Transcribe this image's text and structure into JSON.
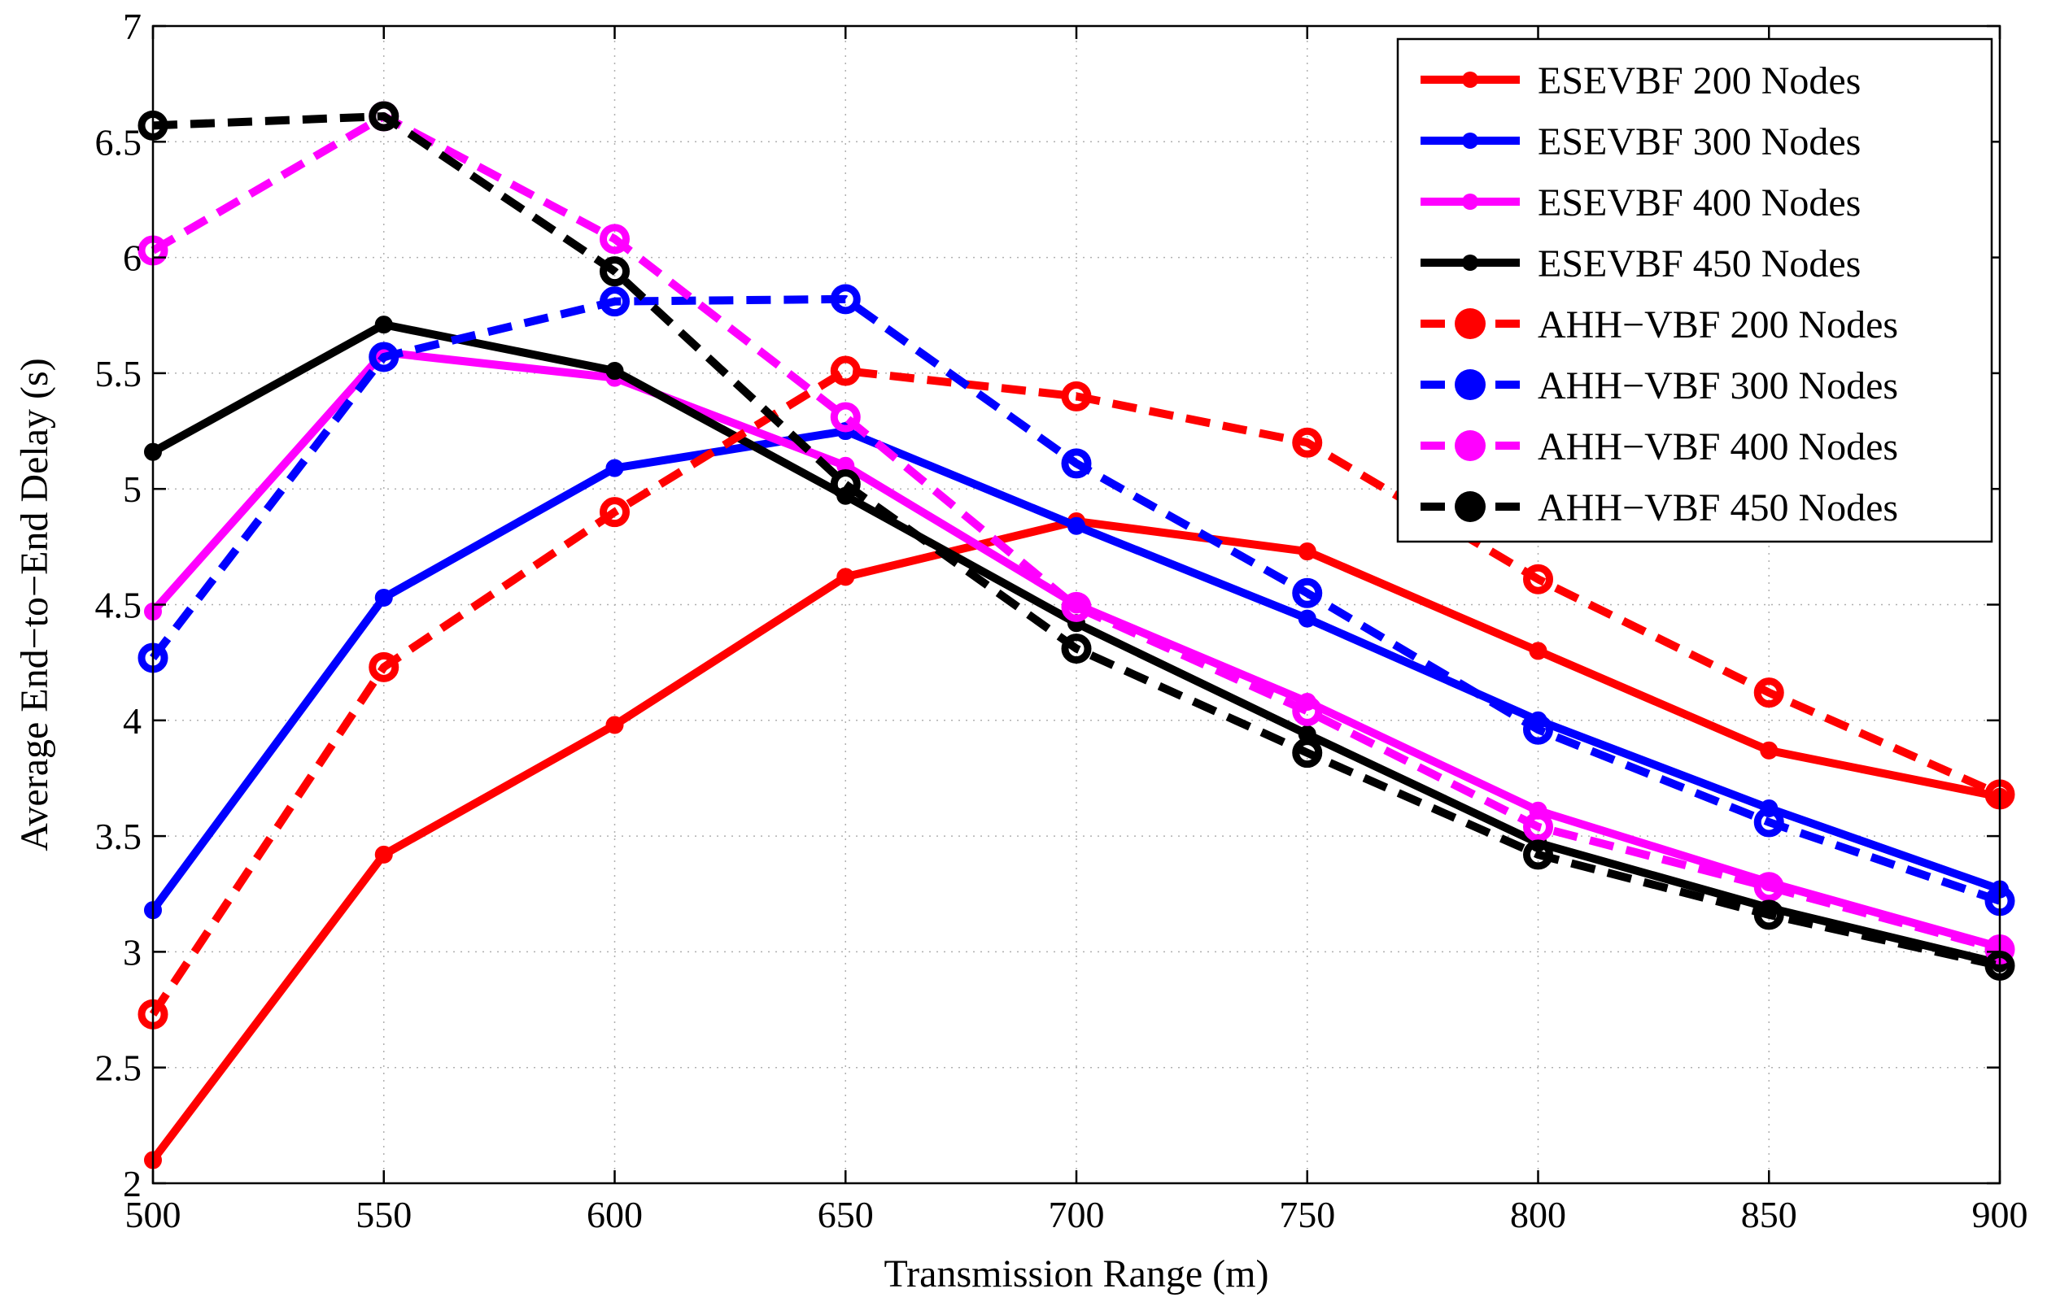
{
  "chart_data": {
    "type": "line",
    "title": "",
    "xlabel": "Transmission Range (m)",
    "ylabel": "Average End−to−End Delay (s)",
    "xlim": [
      500,
      900
    ],
    "ylim": [
      2,
      7
    ],
    "grid": true,
    "legend_position": "top-right",
    "x": [
      500,
      550,
      600,
      650,
      700,
      750,
      800,
      850,
      900
    ],
    "x_ticks": [
      "500",
      "550",
      "600",
      "650",
      "700",
      "750",
      "800",
      "850",
      "900"
    ],
    "y_ticks": [
      {
        "value": 2,
        "label": "2"
      },
      {
        "value": 2.5,
        "label": "2.5"
      },
      {
        "value": 3,
        "label": "3"
      },
      {
        "value": 3.5,
        "label": "3.5"
      },
      {
        "value": 4,
        "label": "4"
      },
      {
        "value": 4.5,
        "label": "4.5"
      },
      {
        "value": 5,
        "label": "5"
      },
      {
        "value": 5.5,
        "label": "5.5"
      },
      {
        "value": 6,
        "label": "6"
      },
      {
        "value": 6.5,
        "label": "6.5"
      },
      {
        "value": 7,
        "label": "7"
      }
    ],
    "series": [
      {
        "name": "ESEVBF 200 Nodes",
        "key": "esevbf-200",
        "color": "#ff0000",
        "style": "solid",
        "marker": "dot",
        "values": [
          2.1,
          3.42,
          3.98,
          4.62,
          4.86,
          4.73,
          4.3,
          3.87,
          3.67
        ]
      },
      {
        "name": "ESEVBF 300 Nodes",
        "key": "esevbf-300",
        "color": "#0000ff",
        "style": "solid",
        "marker": "dot",
        "values": [
          3.18,
          4.53,
          5.09,
          5.25,
          4.84,
          4.44,
          4.0,
          3.62,
          3.27
        ]
      },
      {
        "name": "ESEVBF 400 Nodes",
        "key": "esevbf-400",
        "color": "#ff00ff",
        "style": "solid",
        "marker": "dot",
        "values": [
          4.47,
          5.59,
          5.48,
          5.1,
          4.5,
          4.08,
          3.61,
          3.3,
          3.02
        ]
      },
      {
        "name": "ESEVBF 450 Nodes",
        "key": "esevbf-450",
        "color": "#000000",
        "style": "solid",
        "marker": "dot",
        "values": [
          5.16,
          5.71,
          5.51,
          4.97,
          4.42,
          3.94,
          3.47,
          3.19,
          2.95
        ]
      },
      {
        "name": "AHH−VBF 200 Nodes",
        "key": "ahh-vbf-200",
        "color": "#ff0000",
        "style": "dashed",
        "marker": "circle",
        "values": [
          2.73,
          4.23,
          4.9,
          5.51,
          5.4,
          5.2,
          4.61,
          4.12,
          3.68
        ]
      },
      {
        "name": "AHH−VBF 300 Nodes",
        "key": "ahh-vbf-300",
        "color": "#0000ff",
        "style": "dashed",
        "marker": "circle",
        "values": [
          4.27,
          5.57,
          5.81,
          5.82,
          5.11,
          4.55,
          3.96,
          3.56,
          3.22
        ]
      },
      {
        "name": "AHH−VBF 400 Nodes",
        "key": "ahh-vbf-400",
        "color": "#ff00ff",
        "style": "dashed",
        "marker": "circle",
        "values": [
          6.03,
          6.61,
          6.08,
          5.31,
          4.49,
          4.04,
          3.54,
          3.28,
          3.01
        ]
      },
      {
        "name": "AHH−VBF 450 Nodes",
        "key": "ahh-vbf-450",
        "color": "#000000",
        "style": "dashed",
        "marker": "circle",
        "values": [
          6.57,
          6.61,
          5.94,
          5.02,
          4.31,
          3.86,
          3.42,
          3.16,
          2.94
        ]
      }
    ]
  }
}
